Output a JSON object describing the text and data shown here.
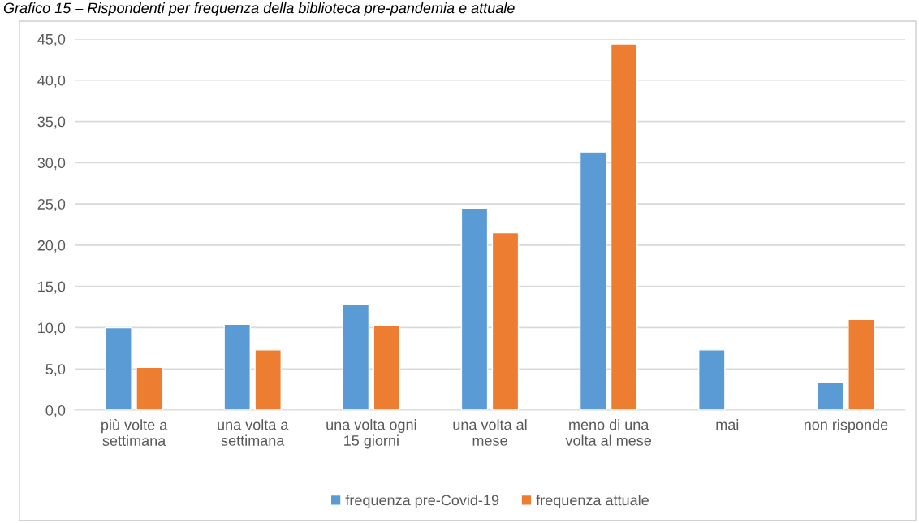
{
  "chart_data": {
    "type": "bar",
    "title": "Grafico 15 – Rispondenti per frequenza della biblioteca pre-pandemia e attuale",
    "categories": [
      "più volte a\nsettimana",
      "una volta a\nsettimana",
      "una volta ogni\n15 giorni",
      "una volta al\nmese",
      "meno di una\nvolta al mese",
      "mai",
      "non risponde"
    ],
    "series": [
      {
        "name": "frequenza pre-Covid-19",
        "color": "#5b9bd5",
        "values": [
          10.0,
          10.4,
          12.8,
          24.5,
          31.3,
          7.3,
          3.4
        ]
      },
      {
        "name": "frequenza attuale",
        "color": "#ed7d31",
        "values": [
          5.2,
          7.3,
          10.3,
          21.5,
          44.4,
          null,
          11.0
        ]
      }
    ],
    "ylim": [
      0,
      45
    ],
    "yticks": [
      {
        "value": 0,
        "label": "0,0"
      },
      {
        "value": 5,
        "label": "5,0"
      },
      {
        "value": 10,
        "label": "10,0"
      },
      {
        "value": 15,
        "label": "15,0"
      },
      {
        "value": 20,
        "label": "20,0"
      },
      {
        "value": 25,
        "label": "25,0"
      },
      {
        "value": 30,
        "label": "30,0"
      },
      {
        "value": 35,
        "label": "35,0"
      },
      {
        "value": 40,
        "label": "40,0"
      },
      {
        "value": 45,
        "label": "45,0"
      }
    ],
    "grid": "y",
    "legend": "bottom"
  }
}
